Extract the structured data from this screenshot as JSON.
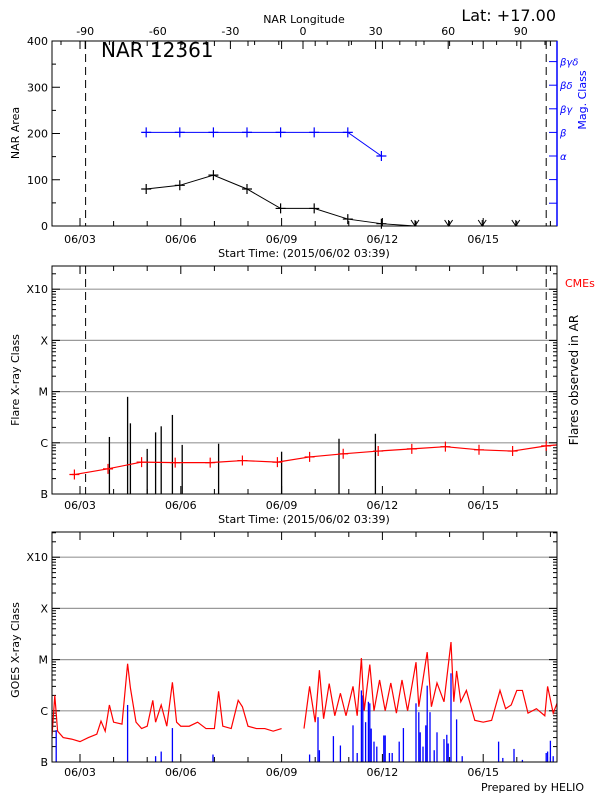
{
  "header": {
    "lat_label": "Lat: +17.00",
    "region_title": "NAR 12361"
  },
  "footer": {
    "credit": "Prepared by HELIO"
  },
  "colors": {
    "area": "#000000",
    "mag_class": "#0000ff",
    "cme": "#ff0000",
    "goes_long": "#ff0000",
    "goes_short": "#0000ff",
    "flare": "#000000",
    "grid": "#999999"
  },
  "chart_data": [
    {
      "type": "line",
      "title": "NAR 12361",
      "xlabel": "Start Time: (2015/06/02 03:39)",
      "ylabel": "NAR Area",
      "y2label": "Mag. Class",
      "top_axis_label": "NAR Longitude",
      "ylim": [
        0,
        400
      ],
      "xlim": [
        "2015/06/02 03:39",
        "2015/06/17 05:00"
      ],
      "x_tick_labels": [
        "06/03",
        "06/06",
        "06/09",
        "06/12",
        "06/15"
      ],
      "y_tick_labels": [
        "0",
        "100",
        "200",
        "300",
        "400"
      ],
      "top_tick_labels": [
        "-90",
        "-60",
        "-30",
        "0",
        "30",
        "60",
        "90"
      ],
      "mag_class_labels": [
        "α",
        "β",
        "βγ",
        "βδ",
        "βγδ"
      ],
      "limb_lines": [
        "06/03 04:00",
        "06/16 21:00"
      ],
      "series": [
        {
          "dates": [
            "06/05",
            "06/06",
            "06/07",
            "06/08",
            "06/09",
            "06/10",
            "06/11",
            "06/12",
            "06/13",
            "06/14",
            "06/15",
            "06/16"
          ],
          "values": [
            80,
            88,
            110,
            80,
            38,
            38,
            15,
            5,
            0,
            0,
            0,
            0
          ]
        },
        {
          "dates": [
            "06/05",
            "06/06",
            "06/07",
            "06/08",
            "06/09",
            "06/10",
            "06/11",
            "06/12"
          ],
          "mag_class": [
            "β",
            "β",
            "β",
            "β",
            "β",
            "β",
            "β",
            "α"
          ]
        }
      ]
    },
    {
      "type": "bar",
      "xlabel": "Start Time: (2015/06/02 03:39)",
      "ylabel": "Flare X-ray Class",
      "y2label": "Flares observed in AR",
      "legend_cme": "CMEs",
      "y_scale": "log",
      "y_tick_labels": [
        "X10",
        "X",
        "M",
        "C",
        "B"
      ],
      "x_tick_labels": [
        "06/03",
        "06/06",
        "06/09",
        "06/12",
        "06/15"
      ],
      "grid": true,
      "flares": [
        {
          "t": "06/03 21:00",
          "class": "C1.3"
        },
        {
          "t": "06/04 10:00",
          "class": "C7.9"
        },
        {
          "t": "06/04 12:00",
          "class": "C2.4"
        },
        {
          "t": "06/05 00:00",
          "class": "B7.6"
        },
        {
          "t": "06/05 06:00",
          "class": "C1.6"
        },
        {
          "t": "06/05 10:00",
          "class": "C2.1"
        },
        {
          "t": "06/05 18:00",
          "class": "C3.5"
        },
        {
          "t": "06/06 01:00",
          "class": "B9.1"
        },
        {
          "t": "06/07 03:00",
          "class": "B9.6"
        },
        {
          "t": "06/09 00:00",
          "class": "B6.7"
        },
        {
          "t": "06/10 17:00",
          "class": "C1.2"
        },
        {
          "t": "06/11 19:00",
          "class": "C1.5"
        }
      ],
      "cme_points": [
        [
          "06/02 20:00",
          2.4e-07
        ],
        [
          "06/03 20:00",
          3.1e-07
        ],
        [
          "06/04 20:00",
          4.2e-07
        ],
        [
          "06/05 20:00",
          4.1e-07
        ],
        [
          "06/06 21:00",
          4.1e-07
        ],
        [
          "06/07 20:00",
          4.5e-07
        ],
        [
          "06/08 21:00",
          4.2e-07
        ],
        [
          "06/09 20:00",
          5.3e-07
        ],
        [
          "06/10 20:00",
          6.1e-07
        ],
        [
          "06/11 21:00",
          6.9e-07
        ],
        [
          "06/12 21:00",
          7.6e-07
        ],
        [
          "06/13 21:00",
          8.4e-07
        ],
        [
          "06/14 21:00",
          7.3e-07
        ],
        [
          "06/15 21:00",
          6.9e-07
        ],
        [
          "06/16 21:00",
          8.7e-07
        ]
      ]
    },
    {
      "type": "line",
      "ylabel": "GOES X-ray Class",
      "y_scale": "log",
      "y_tick_labels": [
        "X10",
        "X",
        "M",
        "C",
        "B"
      ],
      "x_tick_labels": [
        "06/03",
        "06/06",
        "06/09",
        "06/12",
        "06/15"
      ],
      "grid": true,
      "long_channel": [
        [
          "06/02 04:00",
          3.2e-07
        ],
        [
          "06/02 06:00",
          2e-06
        ],
        [
          "06/02 08:00",
          4e-07
        ],
        [
          "06/02 12:00",
          3e-07
        ],
        [
          "06/02 18:00",
          2.8e-07
        ],
        [
          "06/03 00:00",
          2.5e-07
        ],
        [
          "06/03 06:00",
          3e-07
        ],
        [
          "06/03 12:00",
          3.5e-07
        ],
        [
          "06/03 15:00",
          6.3e-07
        ],
        [
          "06/03 18:00",
          4e-07
        ],
        [
          "06/03 21:00",
          1.3e-06
        ],
        [
          "06/04 00:00",
          6e-07
        ],
        [
          "06/04 06:00",
          5.5e-07
        ],
        [
          "06/04 10:00",
          8.3e-06
        ],
        [
          "06/04 12:00",
          2.8e-06
        ],
        [
          "06/04 16:00",
          6e-07
        ],
        [
          "06/04 20:00",
          4.5e-07
        ],
        [
          "06/05 00:00",
          5e-07
        ],
        [
          "06/05 04:00",
          1.6e-06
        ],
        [
          "06/05 06:00",
          6e-07
        ],
        [
          "06/05 10:00",
          1.3e-06
        ],
        [
          "06/05 14:00",
          5e-07
        ],
        [
          "06/05 18:00",
          3.6e-06
        ],
        [
          "06/05 21:00",
          6e-07
        ],
        [
          "06/06 00:00",
          5e-07
        ],
        [
          "06/06 06:00",
          5e-07
        ],
        [
          "06/06 12:00",
          6e-07
        ],
        [
          "06/06 18:00",
          4.5e-07
        ],
        [
          "06/07 00:00",
          4.5e-07
        ],
        [
          "06/07 03:00",
          2.4e-06
        ],
        [
          "06/07 06:00",
          5e-07
        ],
        [
          "06/07 12:00",
          4.5e-07
        ],
        [
          "06/07 17:00",
          1.6e-06
        ],
        [
          "06/07 20:00",
          1.2e-06
        ],
        [
          "06/08 00:00",
          5e-07
        ],
        [
          "06/08 06:00",
          4.5e-07
        ],
        [
          "06/08 12:00",
          4.5e-07
        ],
        [
          "06/08 18:00",
          4e-07
        ],
        [
          "06/09 00:00",
          4.5e-07
        ],
        null,
        [
          "06/09 16:00",
          4.5e-07
        ],
        [
          "06/09 20:00",
          3e-06
        ],
        [
          "06/10 00:00",
          6e-07
        ],
        [
          "06/10 03:00",
          6.2e-06
        ],
        [
          "06/10 06:00",
          7e-07
        ],
        [
          "06/10 10:00",
          3.4e-06
        ],
        [
          "06/10 14:00",
          8e-07
        ],
        [
          "06/10 18:00",
          2.2e-06
        ],
        [
          "06/10 22:00",
          8e-07
        ],
        [
          "06/11 03:00",
          3e-06
        ],
        [
          "06/11 06:00",
          8e-07
        ],
        [
          "06/11 09:00",
          1.07e-05
        ],
        [
          "06/11 11:00",
          1e-06
        ],
        [
          "06/11 15:00",
          8e-06
        ],
        [
          "06/11 18:00",
          1e-06
        ],
        [
          "06/11 22:00",
          4e-06
        ],
        [
          "06/12 02:00",
          1e-06
        ],
        [
          "06/12 06:00",
          3.5e-06
        ],
        [
          "06/12 10:00",
          9e-07
        ],
        [
          "06/12 14:00",
          4e-06
        ],
        [
          "06/12 18:00",
          1e-06
        ],
        [
          "06/13 00:00",
          8.9e-06
        ],
        [
          "06/13 02:00",
          1.2e-06
        ],
        [
          "06/13 08:00",
          1.4e-05
        ],
        [
          "06/13 11:00",
          1.2e-06
        ],
        [
          "06/13 15:00",
          3.5e-06
        ],
        [
          "06/13 20:00",
          1.5e-06
        ],
        [
          "06/14 01:00",
          2.2e-05
        ],
        [
          "06/14 03:00",
          1.5e-06
        ],
        [
          "06/14 05:00",
          6e-06
        ],
        [
          "06/14 08:00",
          1.5e-06
        ],
        [
          "06/14 12:00",
          2.5e-06
        ],
        [
          "06/14 18:00",
          6.5e-07
        ],
        [
          "06/15 00:00",
          6e-07
        ],
        [
          "06/15 06:00",
          6.5e-07
        ],
        [
          "06/15 12:00",
          2.5e-06
        ],
        [
          "06/15 16:00",
          1.1e-06
        ],
        [
          "06/15 20:00",
          1.3e-06
        ],
        [
          "06/16 00:00",
          2.5e-06
        ],
        [
          "06/16 04:00",
          2.5e-06
        ],
        [
          "06/16 08:00",
          9e-07
        ],
        [
          "06/16 14:00",
          1.1e-06
        ],
        [
          "06/16 20:00",
          8e-07
        ],
        [
          "06/16 22:00",
          3e-06
        ],
        [
          "06/17 02:00",
          9e-07
        ],
        [
          "06/17 05:00",
          1.4e-06
        ]
      ],
      "short_channel_bars": [
        [
          "06/02 07:00",
          4.2e-07
        ],
        [
          "06/04 10:00",
          1.3e-06
        ],
        [
          "06/05 06:00",
          1.3e-07
        ],
        [
          "06/05 10:00",
          1.6e-07
        ],
        [
          "06/05 18:00",
          4.6e-07
        ],
        [
          "06/06 23:00",
          1.4e-07
        ],
        [
          "06/09 20:00",
          1.4e-07
        ],
        [
          "06/10 02:00",
          7.5e-07
        ],
        [
          "06/10 03:00",
          1.7e-07
        ],
        [
          "06/10 13:00",
          3.2e-07
        ],
        [
          "06/10 18:00",
          2.1e-07
        ],
        [
          "06/11 03:00",
          5.2e-07
        ],
        [
          "06/11 06:00",
          1.5e-07
        ],
        [
          "06/11 09:00",
          2.5e-06
        ],
        [
          "06/11 10:00",
          2e-06
        ],
        [
          "06/11 12:00",
          6e-07
        ],
        [
          "06/11 14:00",
          1.5e-06
        ],
        [
          "06/11 15:00",
          1.4e-06
        ],
        [
          "06/11 16:00",
          4.5e-07
        ],
        [
          "06/11 18:00",
          2.5e-07
        ],
        [
          "06/11 20:00",
          2e-07
        ],
        [
          "06/12 01:00",
          3.3e-07
        ],
        [
          "06/12 02:00",
          3.3e-07
        ],
        [
          "06/12 05:00",
          1.5e-07
        ],
        [
          "06/12 07:00",
          1.5e-07
        ],
        [
          "06/12 12:00",
          2.5e-07
        ],
        [
          "06/12 15:00",
          4.6e-07
        ],
        [
          "06/13 00:00",
          1.4e-06
        ],
        [
          "06/13 02:00",
          9.4e-07
        ],
        [
          "06/13 03:00",
          3.8e-07
        ],
        [
          "06/13 05:00",
          2e-07
        ],
        [
          "06/13 07:00",
          5.2e-07
        ],
        [
          "06/13 08:00",
          3.1e-06
        ],
        [
          "06/13 10:00",
          9.4e-07
        ],
        [
          "06/13 13:00",
          1.7e-07
        ],
        [
          "06/13 15:00",
          3.8e-07
        ],
        [
          "06/13 20:00",
          2.8e-07
        ],
        [
          "06/13 22:00",
          3.4e-07
        ],
        [
          "06/13 23:00",
          2.3e-07
        ],
        [
          "06/14 01:00",
          5.4e-06
        ],
        [
          "06/14 05:00",
          6.8e-07
        ],
        [
          "06/14 09:00",
          1.3e-07
        ],
        [
          "06/15 11:00",
          2.5e-07
        ],
        [
          "06/15 14:00",
          1.2e-07
        ],
        [
          "06/15 22:00",
          1.8e-07
        ],
        [
          "06/16 04:00",
          1.1e-07
        ],
        [
          "06/16 21:00",
          1.5e-07
        ],
        [
          "06/16 22:00",
          1.6e-07
        ],
        [
          "06/17 00:00",
          2.6e-07
        ],
        [
          "06/17 02:00",
          1.3e-07
        ]
      ]
    }
  ]
}
